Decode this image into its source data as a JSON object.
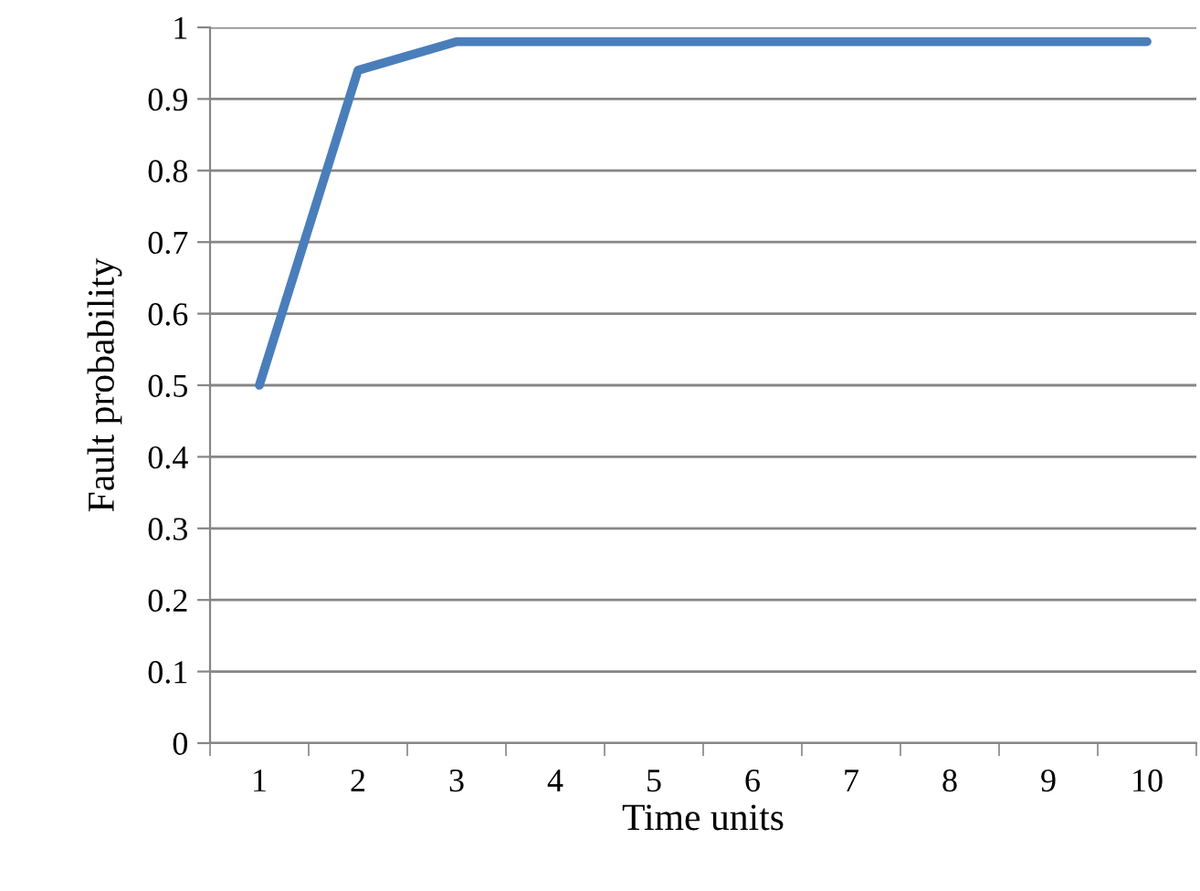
{
  "chart_data": {
    "type": "line",
    "xlabel": "Time units",
    "ylabel": "Fault probability",
    "categories": [
      "1",
      "2",
      "3",
      "4",
      "5",
      "6",
      "7",
      "8",
      "9",
      "10"
    ],
    "series": [
      {
        "color": "#4a7ebb",
        "values": [
          0.5,
          0.94,
          0.98,
          0.98,
          0.98,
          0.98,
          0.98,
          0.98,
          0.98,
          0.98
        ]
      }
    ],
    "ylim": [
      0,
      1
    ],
    "yticks": [
      0,
      0.1,
      0.2,
      0.3,
      0.4,
      0.5,
      0.6,
      0.7,
      0.8,
      0.9,
      1
    ],
    "grid": "y",
    "marker": "none",
    "line_style": "solid"
  }
}
